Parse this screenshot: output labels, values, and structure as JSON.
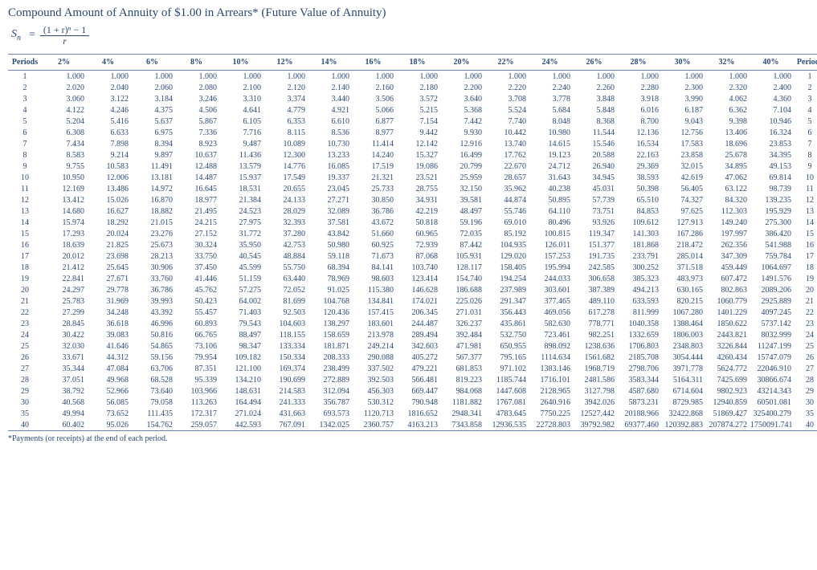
{
  "title": "Compound Amount of Annuity of $1.00 in Arrears* (Future Value of Annuity)",
  "formula": {
    "lhs": "S",
    "sub": "n",
    "numerator": "(1 + r)ⁿ − 1",
    "denominator": "r"
  },
  "headers": {
    "periods": "Periods",
    "rates": [
      "2%",
      "4%",
      "6%",
      "8%",
      "10%",
      "12%",
      "14%",
      "16%",
      "18%",
      "20%",
      "22%",
      "24%",
      "26%",
      "28%",
      "30%",
      "32%",
      "40%"
    ]
  },
  "col_widths": {
    "period": 42,
    "rate": 55
  },
  "rows": [
    {
      "p": 1,
      "v": [
        "1.000",
        "1.000",
        "1.000",
        "1.000",
        "1.000",
        "1.000",
        "1.000",
        "1.000",
        "1.000",
        "1.000",
        "1.000",
        "1.000",
        "1.000",
        "1.000",
        "1.000",
        "1.000",
        "1.000"
      ]
    },
    {
      "p": 2,
      "v": [
        "2.020",
        "2.040",
        "2.060",
        "2.080",
        "2.100",
        "2.120",
        "2.140",
        "2.160",
        "2.180",
        "2.200",
        "2.220",
        "2.240",
        "2.260",
        "2.280",
        "2.300",
        "2.320",
        "2.400"
      ]
    },
    {
      "p": 3,
      "v": [
        "3.060",
        "3.122",
        "3.184",
        "3.246",
        "3.310",
        "3.374",
        "3.440",
        "3.506",
        "3.572",
        "3.640",
        "3.708",
        "3.778",
        "3.848",
        "3.918",
        "3.990",
        "4.062",
        "4.360"
      ]
    },
    {
      "p": 4,
      "v": [
        "4.122",
        "4.246",
        "4.375",
        "4.506",
        "4.641",
        "4.779",
        "4.921",
        "5.066",
        "5.215",
        "5.368",
        "5.524",
        "5.684",
        "5.848",
        "6.016",
        "6.187",
        "6.362",
        "7.104"
      ]
    },
    {
      "p": 5,
      "v": [
        "5.204",
        "5.416",
        "5.637",
        "5.867",
        "6.105",
        "6.353",
        "6.610",
        "6.877",
        "7.154",
        "7.442",
        "7.740",
        "8.048",
        "8.368",
        "8.700",
        "9.043",
        "9.398",
        "10.946"
      ]
    },
    {
      "p": 6,
      "v": [
        "6.308",
        "6.633",
        "6.975",
        "7.336",
        "7.716",
        "8.115",
        "8.536",
        "8.977",
        "9.442",
        "9.930",
        "10.442",
        "10.980",
        "11.544",
        "12.136",
        "12.756",
        "13.406",
        "16.324"
      ]
    },
    {
      "p": 7,
      "v": [
        "7.434",
        "7.898",
        "8.394",
        "8.923",
        "9.487",
        "10.089",
        "10.730",
        "11.414",
        "12.142",
        "12.916",
        "13.740",
        "14.615",
        "15.546",
        "16.534",
        "17.583",
        "18.696",
        "23.853"
      ]
    },
    {
      "p": 8,
      "v": [
        "8.583",
        "9.214",
        "9.897",
        "10.637",
        "11.436",
        "12.300",
        "13.233",
        "14.240",
        "15.327",
        "16.499",
        "17.762",
        "19.123",
        "20.588",
        "22.163",
        "23.858",
        "25.678",
        "34.395"
      ]
    },
    {
      "p": 9,
      "v": [
        "9.755",
        "10.583",
        "11.491",
        "12.488",
        "13.579",
        "14.776",
        "16.085",
        "17.519",
        "19.086",
        "20.799",
        "22.670",
        "24.712",
        "26.940",
        "29.369",
        "32.015",
        "34.895",
        "49.153"
      ]
    },
    {
      "p": 10,
      "v": [
        "10.950",
        "12.006",
        "13.181",
        "14.487",
        "15.937",
        "17.549",
        "19.337",
        "21.321",
        "23.521",
        "25.959",
        "28.657",
        "31.643",
        "34.945",
        "38.593",
        "42.619",
        "47.062",
        "69.814"
      ]
    },
    {
      "p": 11,
      "v": [
        "12.169",
        "13.486",
        "14.972",
        "16.645",
        "18.531",
        "20.655",
        "23.045",
        "25.733",
        "28.755",
        "32.150",
        "35.962",
        "40.238",
        "45.031",
        "50.398",
        "56.405",
        "63.122",
        "98.739"
      ]
    },
    {
      "p": 12,
      "v": [
        "13.412",
        "15.026",
        "16.870",
        "18.977",
        "21.384",
        "24.133",
        "27.271",
        "30.850",
        "34.931",
        "39.581",
        "44.874",
        "50.895",
        "57.739",
        "65.510",
        "74.327",
        "84.320",
        "139.235"
      ]
    },
    {
      "p": 13,
      "v": [
        "14.680",
        "16.627",
        "18.882",
        "21.495",
        "24.523",
        "28.029",
        "32.089",
        "36.786",
        "42.219",
        "48.497",
        "55.746",
        "64.110",
        "73.751",
        "84.853",
        "97.625",
        "112.303",
        "195.929"
      ]
    },
    {
      "p": 14,
      "v": [
        "15.974",
        "18.292",
        "21.015",
        "24.215",
        "27.975",
        "32.393",
        "37.581",
        "43.672",
        "50.818",
        "59.196",
        "69.010",
        "80.496",
        "93.926",
        "109.612",
        "127.913",
        "149.240",
        "275.300"
      ]
    },
    {
      "p": 15,
      "v": [
        "17.293",
        "20.024",
        "23.276",
        "27.152",
        "31.772",
        "37.280",
        "43.842",
        "51.660",
        "60.965",
        "72.035",
        "85.192",
        "100.815",
        "119.347",
        "141.303",
        "167.286",
        "197.997",
        "386.420"
      ]
    },
    {
      "p": 16,
      "v": [
        "18.639",
        "21.825",
        "25.673",
        "30.324",
        "35.950",
        "42.753",
        "50.980",
        "60.925",
        "72.939",
        "87.442",
        "104.935",
        "126.011",
        "151.377",
        "181.868",
        "218.472",
        "262.356",
        "541.988"
      ]
    },
    {
      "p": 17,
      "v": [
        "20.012",
        "23.698",
        "28.213",
        "33.750",
        "40.545",
        "48.884",
        "59.118",
        "71.673",
        "87.068",
        "105.931",
        "129.020",
        "157.253",
        "191.735",
        "233.791",
        "285.014",
        "347.309",
        "759.784"
      ]
    },
    {
      "p": 18,
      "v": [
        "21.412",
        "25.645",
        "30.906",
        "37.450",
        "45.599",
        "55.750",
        "68.394",
        "84.141",
        "103.740",
        "128.117",
        "158.405",
        "195.994",
        "242.585",
        "300.252",
        "371.518",
        "459.449",
        "1064.697"
      ]
    },
    {
      "p": 19,
      "v": [
        "22.841",
        "27.671",
        "33.760",
        "41.446",
        "51.159",
        "63.440",
        "78.969",
        "98.603",
        "123.414",
        "154.740",
        "194.254",
        "244.033",
        "306.658",
        "385.323",
        "483.973",
        "607.472",
        "1491.576"
      ]
    },
    {
      "p": 20,
      "v": [
        "24.297",
        "29.778",
        "36.786",
        "45.762",
        "57.275",
        "72.052",
        "91.025",
        "115.380",
        "146.628",
        "186.688",
        "237.989",
        "303.601",
        "387.389",
        "494.213",
        "630.165",
        "802.863",
        "2089.206"
      ]
    },
    {
      "p": 21,
      "v": [
        "25.783",
        "31.969",
        "39.993",
        "50.423",
        "64.002",
        "81.699",
        "104.768",
        "134.841",
        "174.021",
        "225.026",
        "291.347",
        "377.465",
        "489.110",
        "633.593",
        "820.215",
        "1060.779",
        "2925.889"
      ]
    },
    {
      "p": 22,
      "v": [
        "27.299",
        "34.248",
        "43.392",
        "55.457",
        "71.403",
        "92.503",
        "120.436",
        "157.415",
        "206.345",
        "271.031",
        "356.443",
        "469.056",
        "617.278",
        "811.999",
        "1067.280",
        "1401.229",
        "4097.245"
      ]
    },
    {
      "p": 23,
      "v": [
        "28.845",
        "36.618",
        "46.996",
        "60.893",
        "79.543",
        "104.603",
        "138.297",
        "183.601",
        "244.487",
        "326.237",
        "435.861",
        "582.630",
        "778.771",
        "1040.358",
        "1388.464",
        "1850.622",
        "5737.142"
      ]
    },
    {
      "p": 24,
      "v": [
        "30.422",
        "39.083",
        "50.816",
        "66.765",
        "88.497",
        "118.155",
        "158.659",
        "213.978",
        "289.494",
        "392.484",
        "532.750",
        "723.461",
        "982.251",
        "1332.659",
        "1806.003",
        "2443.821",
        "8032.999"
      ]
    },
    {
      "p": 25,
      "v": [
        "32.030",
        "41.646",
        "54.865",
        "73.106",
        "98.347",
        "133.334",
        "181.871",
        "249.214",
        "342.603",
        "471.981",
        "650.955",
        "898.092",
        "1238.636",
        "1706.803",
        "2348.803",
        "3226.844",
        "11247.199"
      ]
    },
    {
      "p": 26,
      "v": [
        "33.671",
        "44.312",
        "59.156",
        "79.954",
        "109.182",
        "150.334",
        "208.333",
        "290.088",
        "405.272",
        "567.377",
        "795.165",
        "1114.634",
        "1561.682",
        "2185.708",
        "3054.444",
        "4260.434",
        "15747.079"
      ]
    },
    {
      "p": 27,
      "v": [
        "35.344",
        "47.084",
        "63.706",
        "87.351",
        "121.100",
        "169.374",
        "238.499",
        "337.502",
        "479.221",
        "681.853",
        "971.102",
        "1383.146",
        "1968.719",
        "2798.706",
        "3971.778",
        "5624.772",
        "22046.910"
      ]
    },
    {
      "p": 28,
      "v": [
        "37.051",
        "49.968",
        "68.528",
        "95.339",
        "134.210",
        "190.699",
        "272.889",
        "392.503",
        "566.481",
        "819.223",
        "1185.744",
        "1716.101",
        "2481.586",
        "3583.344",
        "5164.311",
        "7425.699",
        "30866.674"
      ]
    },
    {
      "p": 29,
      "v": [
        "38.792",
        "52.966",
        "73.640",
        "103.966",
        "148.631",
        "214.583",
        "312.094",
        "456.303",
        "669.447",
        "984.068",
        "1447.608",
        "2128.965",
        "3127.798",
        "4587.680",
        "6714.604",
        "9802.923",
        "43214.343"
      ]
    },
    {
      "p": 30,
      "v": [
        "40.568",
        "56.085",
        "79.058",
        "113.263",
        "164.494",
        "241.333",
        "356.787",
        "530.312",
        "790.948",
        "1181.882",
        "1767.081",
        "2640.916",
        "3942.026",
        "5873.231",
        "8729.985",
        "12940.859",
        "60501.081"
      ]
    },
    {
      "p": 35,
      "v": [
        "49.994",
        "73.652",
        "111.435",
        "172.317",
        "271.024",
        "431.663",
        "693.573",
        "1120.713",
        "1816.652",
        "2948.341",
        "4783.645",
        "7750.225",
        "12527.442",
        "20188.966",
        "32422.868",
        "51869.427",
        "325400.279"
      ]
    },
    {
      "p": 40,
      "v": [
        "60.402",
        "95.026",
        "154.762",
        "259.057",
        "442.593",
        "767.091",
        "1342.025",
        "2360.757",
        "4163.213",
        "7343.858",
        "12936.535",
        "22728.803",
        "39792.982",
        "69377.460",
        "120392.883",
        "207874.272",
        "1750091.741"
      ]
    }
  ],
  "footnote": "*Payments (or receipts) at the end of each period.",
  "colors": {
    "text": "#2a4a7a",
    "rule": "#6a86b0",
    "bg": "#ffffff"
  }
}
